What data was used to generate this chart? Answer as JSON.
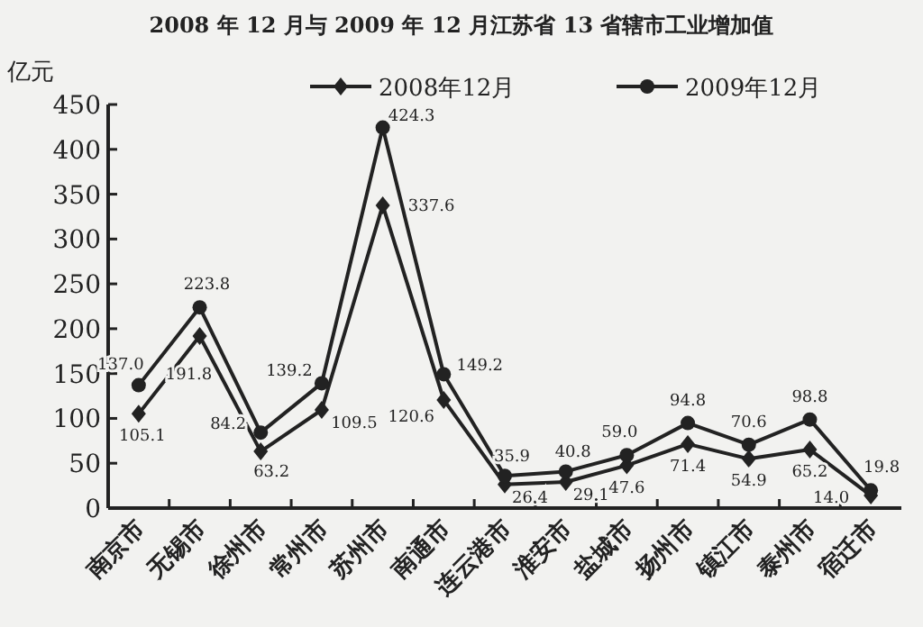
{
  "chart_data": {
    "type": "line",
    "title": "2008 年 12 月与 2009 年 12 月江苏省 13 省辖市工业增加值",
    "ylabel": "亿元",
    "categories": [
      "南京市",
      "无锡市",
      "徐州市",
      "常州市",
      "苏州市",
      "南通市",
      "连云港市",
      "淮安市",
      "盐城市",
      "扬州市",
      "镇江市",
      "泰州市",
      "宿迁市"
    ],
    "series": [
      {
        "name": "2008年12月",
        "color": "#222222",
        "marker": "diamond",
        "values": [
          105.1,
          191.8,
          63.2,
          109.5,
          337.6,
          120.6,
          26.4,
          29.1,
          47.6,
          71.4,
          54.9,
          65.2,
          14.0
        ],
        "value_labels": [
          "105.1",
          "191.8",
          "63.2",
          "109.5",
          "337.6",
          "120.6",
          "26.4",
          "29.1",
          "47.6",
          "71.4",
          "54.9",
          "65.2",
          "14.0"
        ]
      },
      {
        "name": "2009年12月",
        "color": "#222222",
        "marker": "circle",
        "values": [
          137.0,
          223.8,
          84.2,
          139.2,
          424.3,
          149.2,
          35.9,
          40.8,
          59.0,
          94.8,
          70.6,
          98.8,
          19.8
        ],
        "value_labels": [
          "137.0",
          "223.8",
          "84.2",
          "139.2",
          "424.3",
          "149.2",
          "35.9",
          "40.8",
          "59.0",
          "94.8",
          "70.6",
          "98.8",
          "19.8"
        ]
      }
    ],
    "ylim": [
      0,
      450
    ],
    "yticks": [
      0,
      50,
      100,
      150,
      200,
      250,
      300,
      350,
      400,
      450
    ],
    "data_labels": true,
    "legend": "top right",
    "grid": false,
    "line_style": "solid"
  }
}
